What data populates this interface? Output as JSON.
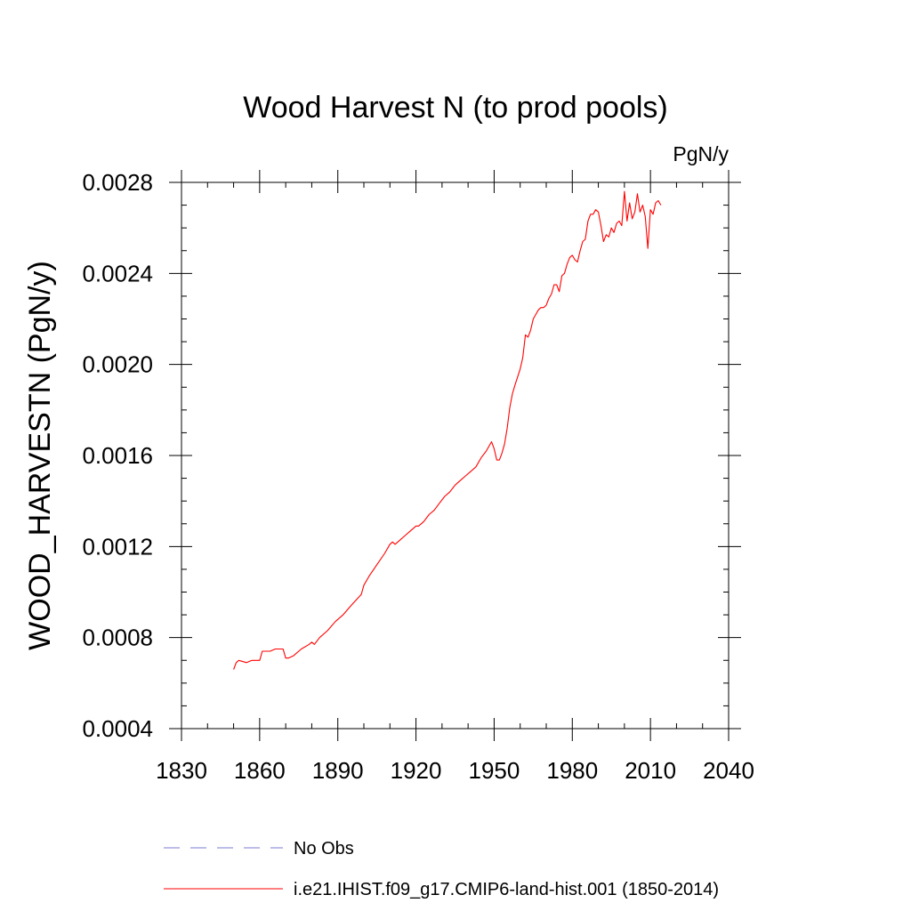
{
  "chart_data": {
    "type": "line",
    "title": "Wood Harvest N (to prod pools)",
    "units_label": "PgN/y",
    "ylabel": "WOOD_HARVESTN  (PgN/y)",
    "xlabel": "",
    "xlim": [
      1830,
      2040
    ],
    "ylim": [
      0.0004,
      0.0028
    ],
    "x_ticks": [
      1830,
      1860,
      1890,
      1920,
      1950,
      1980,
      2010,
      2040
    ],
    "x_tick_labels": [
      "1830",
      "1860",
      "1890",
      "1920",
      "1950",
      "1980",
      "2010",
      "2040"
    ],
    "y_ticks": [
      0.0004,
      0.0008,
      0.0012,
      0.0016,
      0.002,
      0.0024,
      0.0028
    ],
    "y_tick_labels": [
      "0.0004",
      "0.0008",
      "0.0012",
      "0.0016",
      "0.0020",
      "0.0024",
      "0.0028"
    ],
    "x_minor_step": 10,
    "y_minor_step": 0.0001,
    "grid": false,
    "legend_position": "bottom",
    "series": [
      {
        "name": "i.e21.IHIST.f09_g17.CMIP6-land-hist.001 (1850-2014)",
        "color": "#ff0000",
        "style": "solid",
        "x": [
          1850,
          1851,
          1852,
          1855,
          1857,
          1860,
          1861,
          1864,
          1866,
          1869,
          1870,
          1871,
          1873,
          1876,
          1879,
          1880,
          1881,
          1883,
          1886,
          1889,
          1892,
          1895,
          1899,
          1900,
          1902,
          1905,
          1908,
          1910,
          1911,
          1912,
          1914,
          1916,
          1918,
          1920,
          1921,
          1922,
          1923,
          1925,
          1927,
          1929,
          1931,
          1933,
          1935,
          1937,
          1939,
          1941,
          1943,
          1945,
          1947,
          1949,
          1950,
          1951,
          1952,
          1953,
          1954,
          1955,
          1956,
          1957,
          1958,
          1960,
          1961,
          1962,
          1963,
          1964,
          1965,
          1966,
          1967,
          1968,
          1969,
          1970,
          1971,
          1972,
          1973,
          1974,
          1975,
          1976,
          1977,
          1978,
          1979,
          1980,
          1981,
          1982,
          1983,
          1984,
          1985,
          1986,
          1987,
          1988,
          1989,
          1990,
          1991,
          1992,
          1993,
          1994,
          1995,
          1996,
          1997,
          1998,
          1999,
          2000,
          2001,
          2002,
          2003,
          2004,
          2005,
          2006,
          2007,
          2008,
          2009,
          2010,
          2011,
          2012,
          2013,
          2014
        ],
        "y": [
          0.00066,
          0.00069,
          0.0007,
          0.00069,
          0.0007,
          0.0007,
          0.00074,
          0.00074,
          0.00075,
          0.00075,
          0.00071,
          0.00071,
          0.00072,
          0.00075,
          0.00077,
          0.00078,
          0.00077,
          0.0008,
          0.00083,
          0.00087,
          0.0009,
          0.00094,
          0.00099,
          0.00103,
          0.00107,
          0.00112,
          0.00117,
          0.00121,
          0.00122,
          0.00121,
          0.00123,
          0.00125,
          0.00127,
          0.00129,
          0.00129,
          0.0013,
          0.00131,
          0.00134,
          0.00136,
          0.00139,
          0.00142,
          0.00144,
          0.00147,
          0.00149,
          0.00151,
          0.00153,
          0.00155,
          0.00159,
          0.00162,
          0.00166,
          0.00163,
          0.00158,
          0.00158,
          0.00161,
          0.00165,
          0.00172,
          0.00181,
          0.00187,
          0.00191,
          0.00198,
          0.00203,
          0.00213,
          0.00212,
          0.00215,
          0.0022,
          0.00222,
          0.00224,
          0.00225,
          0.00225,
          0.00226,
          0.00229,
          0.00231,
          0.00235,
          0.00235,
          0.00232,
          0.00239,
          0.0024,
          0.00244,
          0.00247,
          0.00248,
          0.00246,
          0.00245,
          0.0025,
          0.00254,
          0.00255,
          0.00263,
          0.00266,
          0.00266,
          0.00268,
          0.00267,
          0.00261,
          0.00254,
          0.00257,
          0.00256,
          0.0026,
          0.00258,
          0.00262,
          0.00263,
          0.00261,
          0.00276,
          0.00263,
          0.00271,
          0.00264,
          0.00267,
          0.00275,
          0.00267,
          0.0027,
          0.00265,
          0.00251,
          0.00268,
          0.00266,
          0.00271,
          0.00272,
          0.0027
        ]
      }
    ],
    "legend": [
      {
        "label": "No Obs",
        "color": "#7b7bd6",
        "style": "dashed"
      },
      {
        "label": "i.e21.IHIST.f09_g17.CMIP6-land-hist.001 (1850-2014)",
        "color": "#ff0000",
        "style": "solid"
      }
    ]
  }
}
